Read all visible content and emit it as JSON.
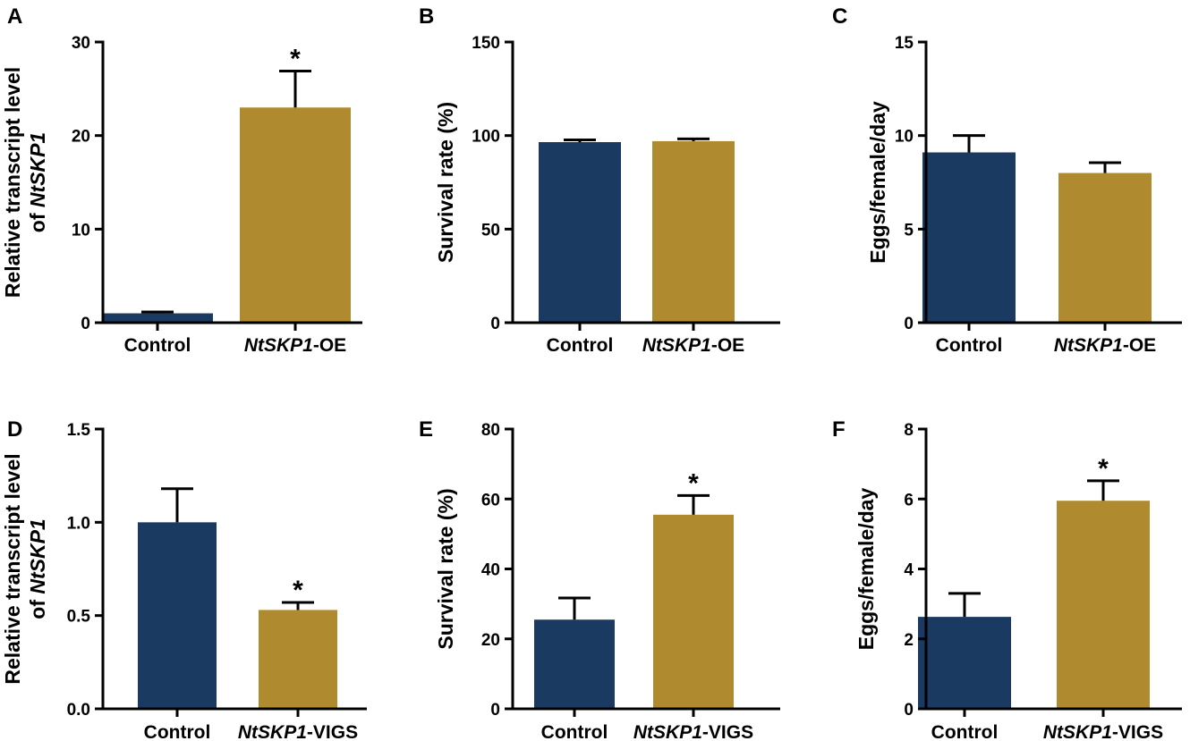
{
  "colors": {
    "control": "#1b3a62",
    "treatment": "#b08a2e"
  },
  "chart_data": [
    {
      "panel": "A",
      "type": "bar",
      "ylabel": [
        "Relative transcript level",
        "of "
      ],
      "ylabel_italic": "NtSKP1",
      "ylim": [
        0,
        30
      ],
      "yticks": [
        "0",
        "10",
        "20",
        "30"
      ],
      "ytick_values": [
        0,
        10,
        20,
        30
      ],
      "categories": [
        {
          "plain_pre": "Control",
          "italic": "",
          "plain_post": ""
        },
        {
          "plain_pre": "",
          "italic": "NtSKP1",
          "plain_post": "-OE"
        }
      ],
      "values": [
        1.0,
        23.0
      ],
      "errors": [
        0.15,
        3.9
      ],
      "significance": [
        "",
        "*"
      ]
    },
    {
      "panel": "B",
      "type": "bar",
      "ylabel": [
        "Survival rate (%)"
      ],
      "ylabel_italic": "",
      "ylim": [
        0,
        150
      ],
      "yticks": [
        "0",
        "50",
        "100",
        "150"
      ],
      "ytick_values": [
        0,
        50,
        100,
        150
      ],
      "categories": [
        {
          "plain_pre": "Control",
          "italic": "",
          "plain_post": ""
        },
        {
          "plain_pre": "",
          "italic": "NtSKP1",
          "plain_post": "-OE"
        }
      ],
      "values": [
        96.5,
        97.0
      ],
      "errors": [
        1.2,
        1.2
      ],
      "significance": [
        "",
        ""
      ]
    },
    {
      "panel": "C",
      "type": "bar",
      "ylabel": [
        "Eggs/female/day"
      ],
      "ylabel_italic": "",
      "ylim": [
        0,
        15
      ],
      "yticks": [
        "0",
        "5",
        "10",
        "15"
      ],
      "ytick_values": [
        0,
        5,
        10,
        15
      ],
      "categories": [
        {
          "plain_pre": "Control",
          "italic": "",
          "plain_post": ""
        },
        {
          "plain_pre": "",
          "italic": "NtSKP1",
          "plain_post": "-OE"
        }
      ],
      "values": [
        9.1,
        8.0
      ],
      "errors": [
        0.9,
        0.55
      ],
      "significance": [
        "",
        ""
      ]
    },
    {
      "panel": "D",
      "type": "bar",
      "ylabel": [
        "Relative transcript level",
        "of "
      ],
      "ylabel_italic": "NtSKP1",
      "ylim": [
        0,
        1.5
      ],
      "yticks": [
        "0.0",
        "0.5",
        "1.0",
        "1.5"
      ],
      "ytick_values": [
        0,
        0.5,
        1.0,
        1.5
      ],
      "categories": [
        {
          "plain_pre": "Control",
          "italic": "",
          "plain_post": ""
        },
        {
          "plain_pre": "",
          "italic": "NtSKP1",
          "plain_post": "-VIGS"
        }
      ],
      "values": [
        1.0,
        0.53
      ],
      "errors": [
        0.18,
        0.04
      ],
      "significance": [
        "",
        "*"
      ]
    },
    {
      "panel": "E",
      "type": "bar",
      "ylabel": [
        "Survival rate (%)"
      ],
      "ylabel_italic": "",
      "ylim": [
        0,
        80
      ],
      "yticks": [
        "0",
        "20",
        "40",
        "60",
        "80"
      ],
      "ytick_values": [
        0,
        20,
        40,
        60,
        80
      ],
      "categories": [
        {
          "plain_pre": "Control",
          "italic": "",
          "plain_post": ""
        },
        {
          "plain_pre": "",
          "italic": "NtSKP1",
          "plain_post": "-VIGS"
        }
      ],
      "values": [
        25.5,
        55.5
      ],
      "errors": [
        6.2,
        5.5
      ],
      "significance": [
        "",
        "*"
      ]
    },
    {
      "panel": "F",
      "type": "bar",
      "ylabel": [
        "Eggs/female/day"
      ],
      "ylabel_italic": "",
      "ylim": [
        0,
        8
      ],
      "yticks": [
        "0",
        "2",
        "4",
        "6",
        "8"
      ],
      "ytick_values": [
        0,
        2,
        4,
        6,
        8
      ],
      "categories": [
        {
          "plain_pre": "Control",
          "italic": "",
          "plain_post": ""
        },
        {
          "plain_pre": "",
          "italic": "NtSKP1",
          "plain_post": "-VIGS"
        }
      ],
      "values": [
        2.63,
        5.95
      ],
      "errors": [
        0.67,
        0.57
      ],
      "significance": [
        "",
        "*"
      ]
    }
  ]
}
